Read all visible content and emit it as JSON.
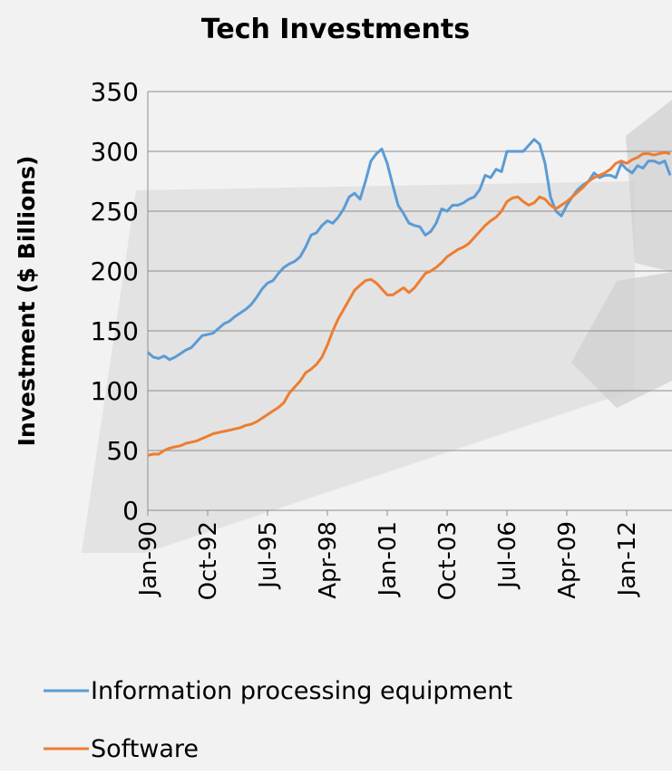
{
  "chart_data": {
    "type": "line",
    "title": "Tech Investments",
    "y_label": "Investment ($ Billions)",
    "categories": [
      "Jan-90",
      null,
      null,
      null,
      null,
      null,
      null,
      null,
      null,
      null,
      null,
      "Oct-92",
      null,
      null,
      null,
      null,
      null,
      null,
      null,
      null,
      null,
      null,
      "Jul-95",
      null,
      null,
      null,
      null,
      null,
      null,
      null,
      null,
      null,
      null,
      "Apr-98",
      null,
      null,
      null,
      null,
      null,
      null,
      null,
      null,
      null,
      null,
      "Jan-01",
      null,
      null,
      null,
      null,
      null,
      null,
      null,
      null,
      null,
      null,
      "Oct-03",
      null,
      null,
      null,
      null,
      null,
      null,
      null,
      null,
      null,
      null,
      "Jul-06",
      null,
      null,
      null,
      null,
      null,
      null,
      null,
      null,
      null,
      null,
      "Apr-09",
      null,
      null,
      null,
      null,
      null,
      null,
      null,
      null,
      null,
      null,
      "Jan-12",
      null,
      null,
      null,
      null,
      null,
      null,
      null,
      null
    ],
    "series": [
      {
        "name": "Information processing equipment",
        "color": "#5b9bd5",
        "values": [
          132,
          128,
          127,
          129,
          126,
          128,
          131,
          134,
          136,
          141,
          146,
          147,
          148,
          152,
          156,
          158,
          162,
          165,
          168,
          172,
          178,
          185,
          190,
          192,
          198,
          203,
          206,
          208,
          212,
          220,
          230,
          232,
          238,
          242,
          240,
          245,
          252,
          262,
          265,
          260,
          275,
          292,
          298,
          302,
          290,
          272,
          255,
          248,
          240,
          238,
          237,
          230,
          233,
          240,
          252,
          250,
          255,
          255,
          257,
          260,
          262,
          268,
          280,
          278,
          285,
          283,
          300,
          300,
          300,
          300,
          305,
          310,
          306,
          290,
          262,
          250,
          246,
          255,
          262,
          268,
          272,
          275,
          282,
          278,
          280,
          280,
          278,
          290,
          285,
          282,
          288,
          286,
          292,
          292,
          290,
          292,
          280
        ]
      },
      {
        "name": "Software",
        "color": "#ed7d31",
        "values": [
          46,
          47,
          47,
          50,
          52,
          53,
          54,
          56,
          57,
          58,
          60,
          62,
          64,
          65,
          66,
          67,
          68,
          69,
          71,
          72,
          74,
          77,
          80,
          83,
          86,
          90,
          98,
          103,
          108,
          115,
          118,
          122,
          128,
          138,
          150,
          160,
          168,
          176,
          184,
          188,
          192,
          193,
          190,
          185,
          180,
          180,
          183,
          186,
          182,
          186,
          192,
          198,
          200,
          203,
          207,
          212,
          215,
          218,
          220,
          223,
          228,
          233,
          238,
          242,
          245,
          250,
          258,
          261,
          262,
          258,
          255,
          257,
          262,
          260,
          255,
          252,
          255,
          258,
          262,
          266,
          270,
          275,
          278,
          280,
          282,
          285,
          290,
          292,
          290,
          293,
          295,
          298,
          298,
          297,
          298,
          299,
          298
        ]
      }
    ],
    "ylim": [
      0,
      350
    ],
    "yticks": [
      0,
      50,
      100,
      150,
      200,
      250,
      300,
      350
    ],
    "grid": true,
    "legend": "bottom"
  }
}
